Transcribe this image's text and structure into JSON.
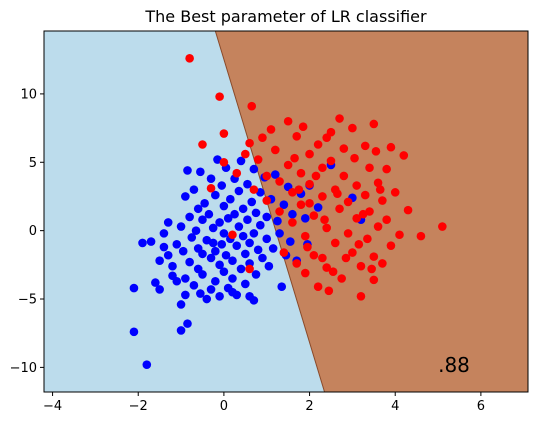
{
  "chart_data": {
    "type": "scatter",
    "title": "The Best parameter of LR classifier",
    "xlabel": "",
    "ylabel": "",
    "xlim": [
      -4.2,
      7.1
    ],
    "ylim": [
      -11.8,
      14.6
    ],
    "xticks": [
      -4,
      -2,
      0,
      2,
      4,
      6
    ],
    "yticks": [
      -10,
      -5,
      0,
      5,
      10
    ],
    "grid": false,
    "legend": "none",
    "decision_boundary": {
      "points": [
        [
          -0.2,
          14.6
        ],
        [
          2.35,
          -11.8
        ]
      ],
      "left_region_color": "#bcdcec",
      "right_region_color": "#c5835d"
    },
    "annotation": ".88",
    "series": [
      {
        "color": "#0000ff",
        "points": [
          [
            -2.1,
            -7.4
          ],
          [
            -1.8,
            -9.8
          ],
          [
            -2.1,
            -4.2
          ],
          [
            -1.9,
            -0.9
          ],
          [
            -1.7,
            -0.8
          ],
          [
            -1.6,
            -3.8
          ],
          [
            -1.5,
            -2.2
          ],
          [
            -1.5,
            -4.3
          ],
          [
            -1.4,
            -1.2
          ],
          [
            -1.4,
            -0.2
          ],
          [
            -1.3,
            0.6
          ],
          [
            -1.3,
            -1.8
          ],
          [
            -1.2,
            -3.3
          ],
          [
            -1.2,
            -2.6
          ],
          [
            -1.1,
            -1.0
          ],
          [
            -1.1,
            -3.7
          ],
          [
            -1.0,
            0.3
          ],
          [
            -1.0,
            -5.4
          ],
          [
            -1.0,
            -7.3
          ],
          [
            -0.95,
            -1.5
          ],
          [
            -0.9,
            2.5
          ],
          [
            -0.9,
            -3.5
          ],
          [
            -0.9,
            -4.7
          ],
          [
            -0.85,
            4.4
          ],
          [
            -0.85,
            -6.8
          ],
          [
            -0.8,
            1.0
          ],
          [
            -0.8,
            -2.3
          ],
          [
            -0.75,
            -0.5
          ],
          [
            -0.7,
            3.0
          ],
          [
            -0.7,
            -4.0
          ],
          [
            -0.65,
            0.0
          ],
          [
            -0.6,
            1.6
          ],
          [
            -0.6,
            -1.3
          ],
          [
            -0.6,
            -2.8
          ],
          [
            -0.55,
            4.3
          ],
          [
            -0.55,
            -4.6
          ],
          [
            -0.5,
            0.8
          ],
          [
            -0.5,
            -1.7
          ],
          [
            -0.5,
            -3.2
          ],
          [
            -0.45,
            2.0
          ],
          [
            -0.4,
            -0.7
          ],
          [
            -0.4,
            -5.0
          ],
          [
            -0.35,
            1.2
          ],
          [
            -0.3,
            3.8
          ],
          [
            -0.3,
            -2.0
          ],
          [
            -0.3,
            -4.3
          ],
          [
            -0.25,
            0.2
          ],
          [
            -0.25,
            -0.9
          ],
          [
            -0.2,
            2.6
          ],
          [
            -0.2,
            -1.5
          ],
          [
            -0.2,
            -3.7
          ],
          [
            -0.15,
            5.2
          ],
          [
            -0.1,
            0.6
          ],
          [
            -0.1,
            -2.5
          ],
          [
            -0.1,
            -4.8
          ],
          [
            -0.05,
            3.3
          ],
          [
            -0.05,
            -1.0
          ],
          [
            0.0,
            1.8
          ],
          [
            0.0,
            -0.2
          ],
          [
            0.0,
            -3.0
          ],
          [
            0.05,
            4.6
          ],
          [
            0.05,
            -1.8
          ],
          [
            0.1,
            0.9
          ],
          [
            0.1,
            -4.2
          ],
          [
            0.15,
            2.3
          ],
          [
            0.15,
            -0.6
          ],
          [
            0.2,
            -2.2
          ],
          [
            0.2,
            -3.5
          ],
          [
            0.25,
            3.8
          ],
          [
            0.25,
            1.2
          ],
          [
            0.3,
            -1.1
          ],
          [
            0.3,
            -4.7
          ],
          [
            0.35,
            0.3
          ],
          [
            0.35,
            2.9
          ],
          [
            0.4,
            -2.8
          ],
          [
            0.4,
            5.1
          ],
          [
            0.45,
            1.6
          ],
          [
            0.45,
            -0.4
          ],
          [
            0.5,
            -1.7
          ],
          [
            0.5,
            -3.9
          ],
          [
            0.55,
            3.4
          ],
          [
            0.55,
            0.8
          ],
          [
            0.6,
            -0.9
          ],
          [
            0.6,
            -2.4
          ],
          [
            0.6,
            -4.8
          ],
          [
            0.65,
            2.1
          ],
          [
            0.7,
            4.5
          ],
          [
            0.7,
            -0.2
          ],
          [
            0.75,
            1.3
          ],
          [
            0.75,
            -3.2
          ],
          [
            0.8,
            -1.4
          ],
          [
            0.85,
            0.4
          ],
          [
            0.85,
            2.8
          ],
          [
            0.9,
            -2.0
          ],
          [
            0.95,
            3.9
          ],
          [
            1.0,
            1.0
          ],
          [
            1.0,
            -0.6
          ],
          [
            1.05,
            -2.6
          ],
          [
            1.1,
            2.3
          ],
          [
            1.15,
            -1.3
          ],
          [
            1.2,
            4.1
          ],
          [
            1.25,
            0.7
          ],
          [
            1.3,
            -0.2
          ],
          [
            1.35,
            -4.1
          ],
          [
            1.4,
            1.9
          ],
          [
            1.45,
            -1.8
          ],
          [
            1.5,
            3.2
          ],
          [
            1.55,
            -0.8
          ],
          [
            1.6,
            1.2
          ],
          [
            1.7,
            -2.2
          ],
          [
            1.8,
            2.7
          ],
          [
            1.9,
            0.9
          ],
          [
            1.95,
            -1.0
          ],
          [
            2.0,
            3.3
          ],
          [
            2.2,
            1.7
          ],
          [
            2.5,
            4.8
          ],
          [
            3.0,
            2.4
          ],
          [
            3.2,
            0.8
          ],
          [
            0.2,
            -4.5
          ],
          [
            0.7,
            -5.1
          ]
        ]
      },
      {
        "color": "#ff0000",
        "points": [
          [
            -0.8,
            12.6
          ],
          [
            -0.1,
            9.8
          ],
          [
            0.65,
            9.1
          ],
          [
            -0.5,
            6.3
          ],
          [
            -0.3,
            3.1
          ],
          [
            0.0,
            5.0
          ],
          [
            0.0,
            7.1
          ],
          [
            0.2,
            -0.3
          ],
          [
            0.3,
            4.2
          ],
          [
            0.5,
            5.6
          ],
          [
            0.6,
            6.4
          ],
          [
            0.6,
            -2.8
          ],
          [
            0.7,
            3.0
          ],
          [
            0.8,
            5.2
          ],
          [
            0.9,
            6.8
          ],
          [
            1.0,
            4.0
          ],
          [
            1.0,
            2.2
          ],
          [
            1.1,
            7.4
          ],
          [
            1.2,
            5.9
          ],
          [
            1.3,
            3.6
          ],
          [
            1.3,
            1.4
          ],
          [
            1.4,
            -1.6
          ],
          [
            1.5,
            8.0
          ],
          [
            1.5,
            4.8
          ],
          [
            1.6,
            2.8
          ],
          [
            1.6,
            0.6
          ],
          [
            1.7,
            6.9
          ],
          [
            1.7,
            -2.4
          ],
          [
            1.8,
            4.2
          ],
          [
            1.8,
            1.9
          ],
          [
            1.85,
            7.6
          ],
          [
            1.9,
            -0.4
          ],
          [
            1.9,
            -3.1
          ],
          [
            2.0,
            5.6
          ],
          [
            2.0,
            3.4
          ],
          [
            2.1,
            1.1
          ],
          [
            2.1,
            -1.8
          ],
          [
            2.2,
            6.3
          ],
          [
            2.2,
            -4.1
          ],
          [
            2.3,
            4.6
          ],
          [
            2.3,
            2.5
          ],
          [
            2.4,
            0.2
          ],
          [
            2.4,
            -2.7
          ],
          [
            2.5,
            7.2
          ],
          [
            2.5,
            5.1
          ],
          [
            2.6,
            3.0
          ],
          [
            2.6,
            -0.9
          ],
          [
            2.7,
            8.2
          ],
          [
            2.7,
            1.6
          ],
          [
            2.75,
            -3.5
          ],
          [
            2.8,
            6.0
          ],
          [
            2.8,
            4.0
          ],
          [
            2.9,
            2.1
          ],
          [
            2.9,
            -0.2
          ],
          [
            3.0,
            7.5
          ],
          [
            3.0,
            -1.6
          ],
          [
            3.05,
            5.3
          ],
          [
            3.1,
            3.3
          ],
          [
            3.1,
            0.9
          ],
          [
            3.2,
            -2.6
          ],
          [
            3.2,
            -4.8
          ],
          [
            3.3,
            6.2
          ],
          [
            3.3,
            2.6
          ],
          [
            3.35,
            -0.6
          ],
          [
            3.4,
            4.6
          ],
          [
            3.4,
            1.4
          ],
          [
            3.5,
            -1.9
          ],
          [
            3.5,
            -3.6
          ],
          [
            3.55,
            5.8
          ],
          [
            3.6,
            3.5
          ],
          [
            3.6,
            0.3
          ],
          [
            3.7,
            2.2
          ],
          [
            3.7,
            -2.4
          ],
          [
            3.8,
            4.5
          ],
          [
            3.8,
            0.8
          ],
          [
            3.9,
            -1.1
          ],
          [
            3.9,
            6.1
          ],
          [
            4.0,
            2.8
          ],
          [
            4.1,
            -0.3
          ],
          [
            3.5,
            7.8
          ],
          [
            4.2,
            5.5
          ],
          [
            4.3,
            1.5
          ],
          [
            4.6,
            -0.4
          ],
          [
            5.1,
            0.3
          ],
          [
            2.3,
            -2.0
          ],
          [
            2.4,
            6.8
          ],
          [
            2.0,
            2.0
          ],
          [
            1.75,
            3.0
          ],
          [
            1.95,
            -1.2
          ],
          [
            2.15,
            4.0
          ],
          [
            2.55,
            -3.0
          ],
          [
            2.65,
            2.7
          ],
          [
            2.85,
            -2.0
          ],
          [
            3.15,
            -1.0
          ],
          [
            3.25,
            1.2
          ],
          [
            3.45,
            -2.8
          ],
          [
            3.65,
            3.0
          ],
          [
            2.35,
            0.8
          ],
          [
            2.45,
            -4.4
          ],
          [
            1.65,
            5.3
          ]
        ]
      }
    ]
  }
}
